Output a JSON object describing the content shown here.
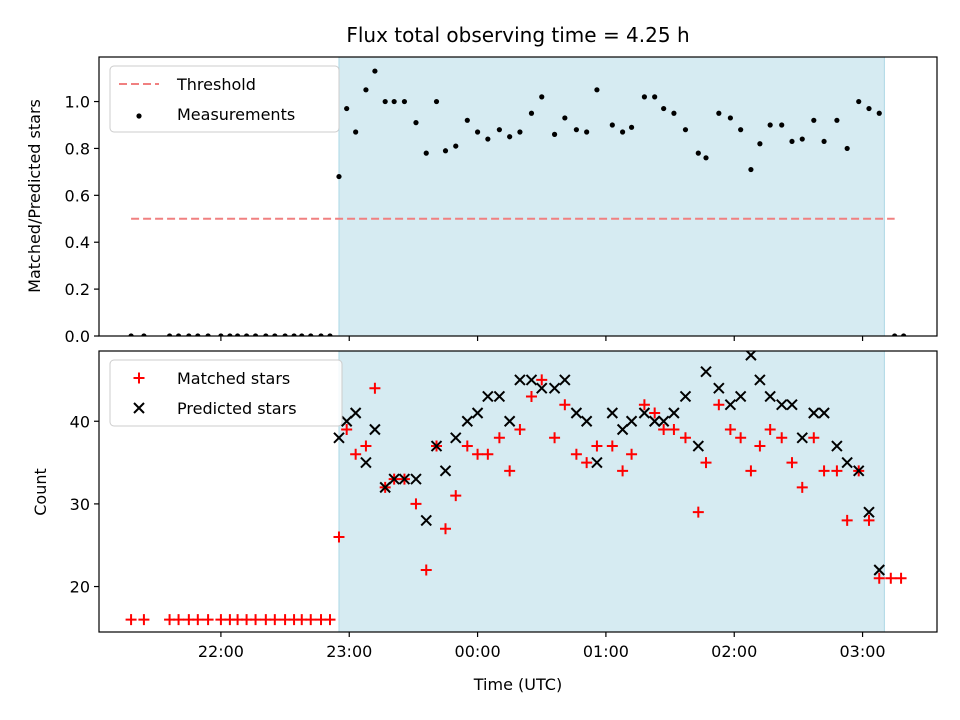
{
  "figure_title": "Flux total observing time = 4.25 h",
  "colors": {
    "shade": "#add8e6",
    "threshold": "#f08080",
    "matched": "#ff0000",
    "predicted": "#000000",
    "measurement": "#000000"
  },
  "chart_data": [
    {
      "type": "scatter",
      "title": "Flux total observing time = 4.25 h",
      "ylabel": "Matched/Predicted stars",
      "xlabel": "",
      "x_unit": "hours (UTC, 24+ = after midnight)",
      "xlim": [
        21.05,
        27.58
      ],
      "ylim": [
        0.0,
        1.19
      ],
      "yticks": [
        0.0,
        0.2,
        0.4,
        0.6,
        0.8,
        1.0
      ],
      "ytick_labels": [
        "0.0",
        "0.2",
        "0.4",
        "0.6",
        "0.8",
        "1.0"
      ],
      "legend_position": "top-left",
      "shaded_span": [
        22.92,
        27.17
      ],
      "threshold": {
        "name": "Threshold",
        "value": 0.5,
        "x_range": [
          21.3,
          27.25
        ]
      },
      "series": [
        {
          "name": "Measurements",
          "points": [
            [
              21.3,
              0
            ],
            [
              21.4,
              0
            ],
            [
              21.6,
              0
            ],
            [
              21.67,
              0
            ],
            [
              21.75,
              0
            ],
            [
              21.82,
              0
            ],
            [
              21.9,
              0
            ],
            [
              22.0,
              0
            ],
            [
              22.07,
              0
            ],
            [
              22.13,
              0
            ],
            [
              22.2,
              0
            ],
            [
              22.27,
              0
            ],
            [
              22.35,
              0
            ],
            [
              22.42,
              0
            ],
            [
              22.5,
              0
            ],
            [
              22.57,
              0
            ],
            [
              22.63,
              0
            ],
            [
              22.7,
              0
            ],
            [
              22.78,
              0
            ],
            [
              22.85,
              0
            ],
            [
              22.92,
              0.68
            ],
            [
              22.98,
              0.97
            ],
            [
              23.05,
              0.87
            ],
            [
              23.13,
              1.05
            ],
            [
              23.2,
              1.13
            ],
            [
              23.28,
              1.0
            ],
            [
              23.35,
              1.0
            ],
            [
              23.43,
              1.0
            ],
            [
              23.52,
              0.91
            ],
            [
              23.6,
              0.78
            ],
            [
              23.68,
              1.0
            ],
            [
              23.75,
              0.79
            ],
            [
              23.83,
              0.81
            ],
            [
              23.92,
              0.92
            ],
            [
              24.0,
              0.87
            ],
            [
              24.08,
              0.84
            ],
            [
              24.17,
              0.88
            ],
            [
              24.25,
              0.85
            ],
            [
              24.33,
              0.87
            ],
            [
              24.42,
              0.95
            ],
            [
              24.5,
              1.02
            ],
            [
              24.6,
              0.86
            ],
            [
              24.68,
              0.93
            ],
            [
              24.77,
              0.88
            ],
            [
              24.85,
              0.87
            ],
            [
              24.93,
              1.05
            ],
            [
              25.05,
              0.9
            ],
            [
              25.13,
              0.87
            ],
            [
              25.2,
              0.89
            ],
            [
              25.3,
              1.02
            ],
            [
              25.38,
              1.02
            ],
            [
              25.45,
              0.97
            ],
            [
              25.53,
              0.95
            ],
            [
              25.62,
              0.88
            ],
            [
              25.72,
              0.78
            ],
            [
              25.78,
              0.76
            ],
            [
              25.88,
              0.95
            ],
            [
              25.97,
              0.93
            ],
            [
              26.05,
              0.88
            ],
            [
              26.13,
              0.71
            ],
            [
              26.2,
              0.82
            ],
            [
              26.28,
              0.9
            ],
            [
              26.37,
              0.9
            ],
            [
              26.45,
              0.83
            ],
            [
              26.53,
              0.84
            ],
            [
              26.62,
              0.92
            ],
            [
              26.7,
              0.83
            ],
            [
              26.8,
              0.92
            ],
            [
              26.88,
              0.8
            ],
            [
              26.97,
              1.0
            ],
            [
              27.05,
              0.97
            ],
            [
              27.13,
              0.95
            ],
            [
              27.25,
              0
            ],
            [
              27.32,
              0
            ]
          ]
        }
      ]
    },
    {
      "type": "scatter",
      "title": "",
      "ylabel": "Count",
      "xlabel": "Time (UTC)",
      "x_unit": "hours (UTC, 24+ = after midnight)",
      "xlim": [
        21.05,
        27.58
      ],
      "ylim": [
        14.5,
        48.5
      ],
      "yticks": [
        20,
        30,
        40
      ],
      "ytick_labels": [
        "20",
        "30",
        "40"
      ],
      "xticks": [
        22,
        23,
        24,
        25,
        26,
        27
      ],
      "xtick_labels": [
        "22:00",
        "23:00",
        "00:00",
        "01:00",
        "02:00",
        "03:00"
      ],
      "legend_position": "top-left",
      "shaded_span": [
        22.92,
        27.17
      ],
      "series": [
        {
          "name": "Matched stars",
          "points": [
            [
              21.3,
              16
            ],
            [
              21.4,
              16
            ],
            [
              21.6,
              16
            ],
            [
              21.67,
              16
            ],
            [
              21.75,
              16
            ],
            [
              21.82,
              16
            ],
            [
              21.9,
              16
            ],
            [
              22.0,
              16
            ],
            [
              22.07,
              16
            ],
            [
              22.13,
              16
            ],
            [
              22.2,
              16
            ],
            [
              22.27,
              16
            ],
            [
              22.35,
              16
            ],
            [
              22.42,
              16
            ],
            [
              22.5,
              16
            ],
            [
              22.57,
              16
            ],
            [
              22.63,
              16
            ],
            [
              22.7,
              16
            ],
            [
              22.78,
              16
            ],
            [
              22.85,
              16
            ],
            [
              22.92,
              26
            ],
            [
              22.98,
              39
            ],
            [
              23.05,
              36
            ],
            [
              23.13,
              37
            ],
            [
              23.2,
              44
            ],
            [
              23.28,
              32
            ],
            [
              23.35,
              33
            ],
            [
              23.43,
              33
            ],
            [
              23.52,
              30
            ],
            [
              23.6,
              22
            ],
            [
              23.68,
              37
            ],
            [
              23.75,
              27
            ],
            [
              23.83,
              31
            ],
            [
              23.92,
              37
            ],
            [
              24.0,
              36
            ],
            [
              24.08,
              36
            ],
            [
              24.17,
              38
            ],
            [
              24.25,
              34
            ],
            [
              24.33,
              39
            ],
            [
              24.42,
              43
            ],
            [
              24.5,
              45
            ],
            [
              24.6,
              38
            ],
            [
              24.68,
              42
            ],
            [
              24.77,
              36
            ],
            [
              24.85,
              35
            ],
            [
              24.93,
              37
            ],
            [
              25.05,
              37
            ],
            [
              25.13,
              34
            ],
            [
              25.2,
              36
            ],
            [
              25.3,
              42
            ],
            [
              25.38,
              41
            ],
            [
              25.45,
              39
            ],
            [
              25.53,
              39
            ],
            [
              25.62,
              38
            ],
            [
              25.72,
              29
            ],
            [
              25.78,
              35
            ],
            [
              25.88,
              42
            ],
            [
              25.97,
              39
            ],
            [
              26.05,
              38
            ],
            [
              26.13,
              34
            ],
            [
              26.2,
              37
            ],
            [
              26.28,
              39
            ],
            [
              26.37,
              38
            ],
            [
              26.45,
              35
            ],
            [
              26.53,
              32
            ],
            [
              26.62,
              38
            ],
            [
              26.7,
              34
            ],
            [
              26.8,
              34
            ],
            [
              26.88,
              28
            ],
            [
              26.97,
              34
            ],
            [
              27.05,
              28
            ],
            [
              27.13,
              21
            ],
            [
              27.22,
              21
            ],
            [
              27.3,
              21
            ]
          ]
        },
        {
          "name": "Predicted stars",
          "points": [
            [
              22.92,
              38
            ],
            [
              22.98,
              40
            ],
            [
              23.05,
              41
            ],
            [
              23.13,
              35
            ],
            [
              23.2,
              39
            ],
            [
              23.28,
              32
            ],
            [
              23.35,
              33
            ],
            [
              23.43,
              33
            ],
            [
              23.52,
              33
            ],
            [
              23.6,
              28
            ],
            [
              23.68,
              37
            ],
            [
              23.75,
              34
            ],
            [
              23.83,
              38
            ],
            [
              23.92,
              40
            ],
            [
              24.0,
              41
            ],
            [
              24.08,
              43
            ],
            [
              24.17,
              43
            ],
            [
              24.25,
              40
            ],
            [
              24.33,
              45
            ],
            [
              24.42,
              45
            ],
            [
              24.5,
              44
            ],
            [
              24.6,
              44
            ],
            [
              24.68,
              45
            ],
            [
              24.77,
              41
            ],
            [
              24.85,
              40
            ],
            [
              24.93,
              35
            ],
            [
              25.05,
              41
            ],
            [
              25.13,
              39
            ],
            [
              25.2,
              40
            ],
            [
              25.3,
              41
            ],
            [
              25.38,
              40
            ],
            [
              25.45,
              40
            ],
            [
              25.53,
              41
            ],
            [
              25.62,
              43
            ],
            [
              25.72,
              37
            ],
            [
              25.78,
              46
            ],
            [
              25.88,
              44
            ],
            [
              25.97,
              42
            ],
            [
              26.05,
              43
            ],
            [
              26.13,
              48
            ],
            [
              26.2,
              45
            ],
            [
              26.28,
              43
            ],
            [
              26.37,
              42
            ],
            [
              26.45,
              42
            ],
            [
              26.53,
              38
            ],
            [
              26.62,
              41
            ],
            [
              26.7,
              41
            ],
            [
              26.8,
              37
            ],
            [
              26.88,
              35
            ],
            [
              26.97,
              34
            ],
            [
              27.05,
              29
            ],
            [
              27.13,
              22
            ]
          ]
        }
      ]
    }
  ]
}
